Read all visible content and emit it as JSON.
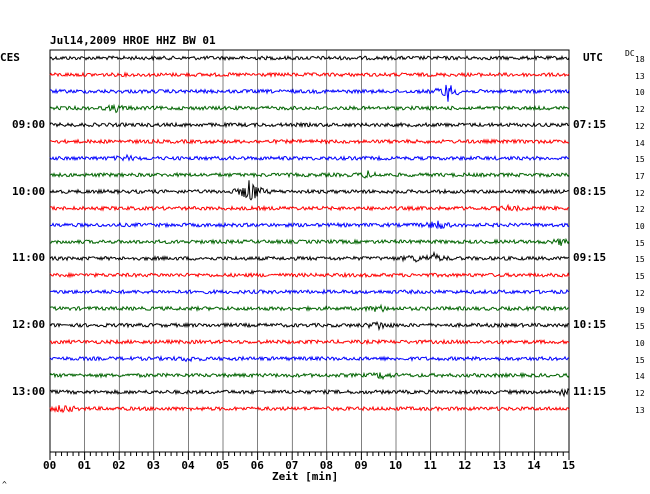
{
  "header": {
    "title": "Jul14,2009   HROE HHZ BW 01",
    "left_zone": "CES",
    "right_zone": "UTC",
    "dc_label": "DC"
  },
  "footer": {
    "xlabel": "Zeit [min]",
    "corner_mark": "^"
  },
  "chart_data": {
    "type": "line",
    "title": "Jul14,2009   HROE HHZ BW 01",
    "xlabel": "Zeit [min]",
    "ylabel": "",
    "x_range": [
      0,
      15
    ],
    "x_ticks": [
      "00",
      "01",
      "02",
      "03",
      "04",
      "05",
      "06",
      "07",
      "08",
      "09",
      "10",
      "11",
      "12",
      "13",
      "14",
      "15"
    ],
    "left_time_labels": [
      "09:00",
      "10:00",
      "11:00",
      "12:00",
      "13:00"
    ],
    "right_time_labels": [
      "07:15",
      "08:15",
      "09:15",
      "10:15",
      "11:15"
    ],
    "time_label_rows": [
      4,
      8,
      12,
      16,
      20
    ],
    "trace_colors": [
      "#000000",
      "#ff0000",
      "#0000ff",
      "#006400"
    ],
    "dc_values": [
      "18",
      "13",
      "10",
      "12",
      "12",
      "14",
      "15",
      "17",
      "12",
      "12",
      "10",
      "15",
      "15",
      "15",
      "12",
      "19",
      "15",
      "10",
      "15",
      "14",
      "12",
      "13"
    ],
    "events": [
      {
        "row": 2,
        "minute": 11.5,
        "amplitude": 9
      },
      {
        "row": 3,
        "minute": 1.9,
        "amplitude": 3
      },
      {
        "row": 6,
        "minute": 2.2,
        "amplitude": 2
      },
      {
        "row": 7,
        "minute": 9.2,
        "amplitude": 3
      },
      {
        "row": 8,
        "minute": 5.8,
        "amplitude": 14
      },
      {
        "row": 9,
        "minute": 13.3,
        "amplitude": 2
      },
      {
        "row": 10,
        "minute": 11.2,
        "amplitude": 5
      },
      {
        "row": 11,
        "minute": 14.8,
        "amplitude": 3
      },
      {
        "row": 12,
        "minute": 10.5,
        "amplitude": 3
      },
      {
        "row": 12,
        "minute": 11.1,
        "amplitude": 4
      },
      {
        "row": 15,
        "minute": 9.5,
        "amplitude": 3
      },
      {
        "row": 16,
        "minute": 9.5,
        "amplitude": 4
      },
      {
        "row": 18,
        "minute": 4.0,
        "amplitude": 2
      },
      {
        "row": 19,
        "minute": 9.6,
        "amplitude": 3
      },
      {
        "row": 20,
        "minute": 14.9,
        "amplitude": 3
      },
      {
        "row": 21,
        "minute": 0.4,
        "amplitude": 4
      }
    ]
  }
}
